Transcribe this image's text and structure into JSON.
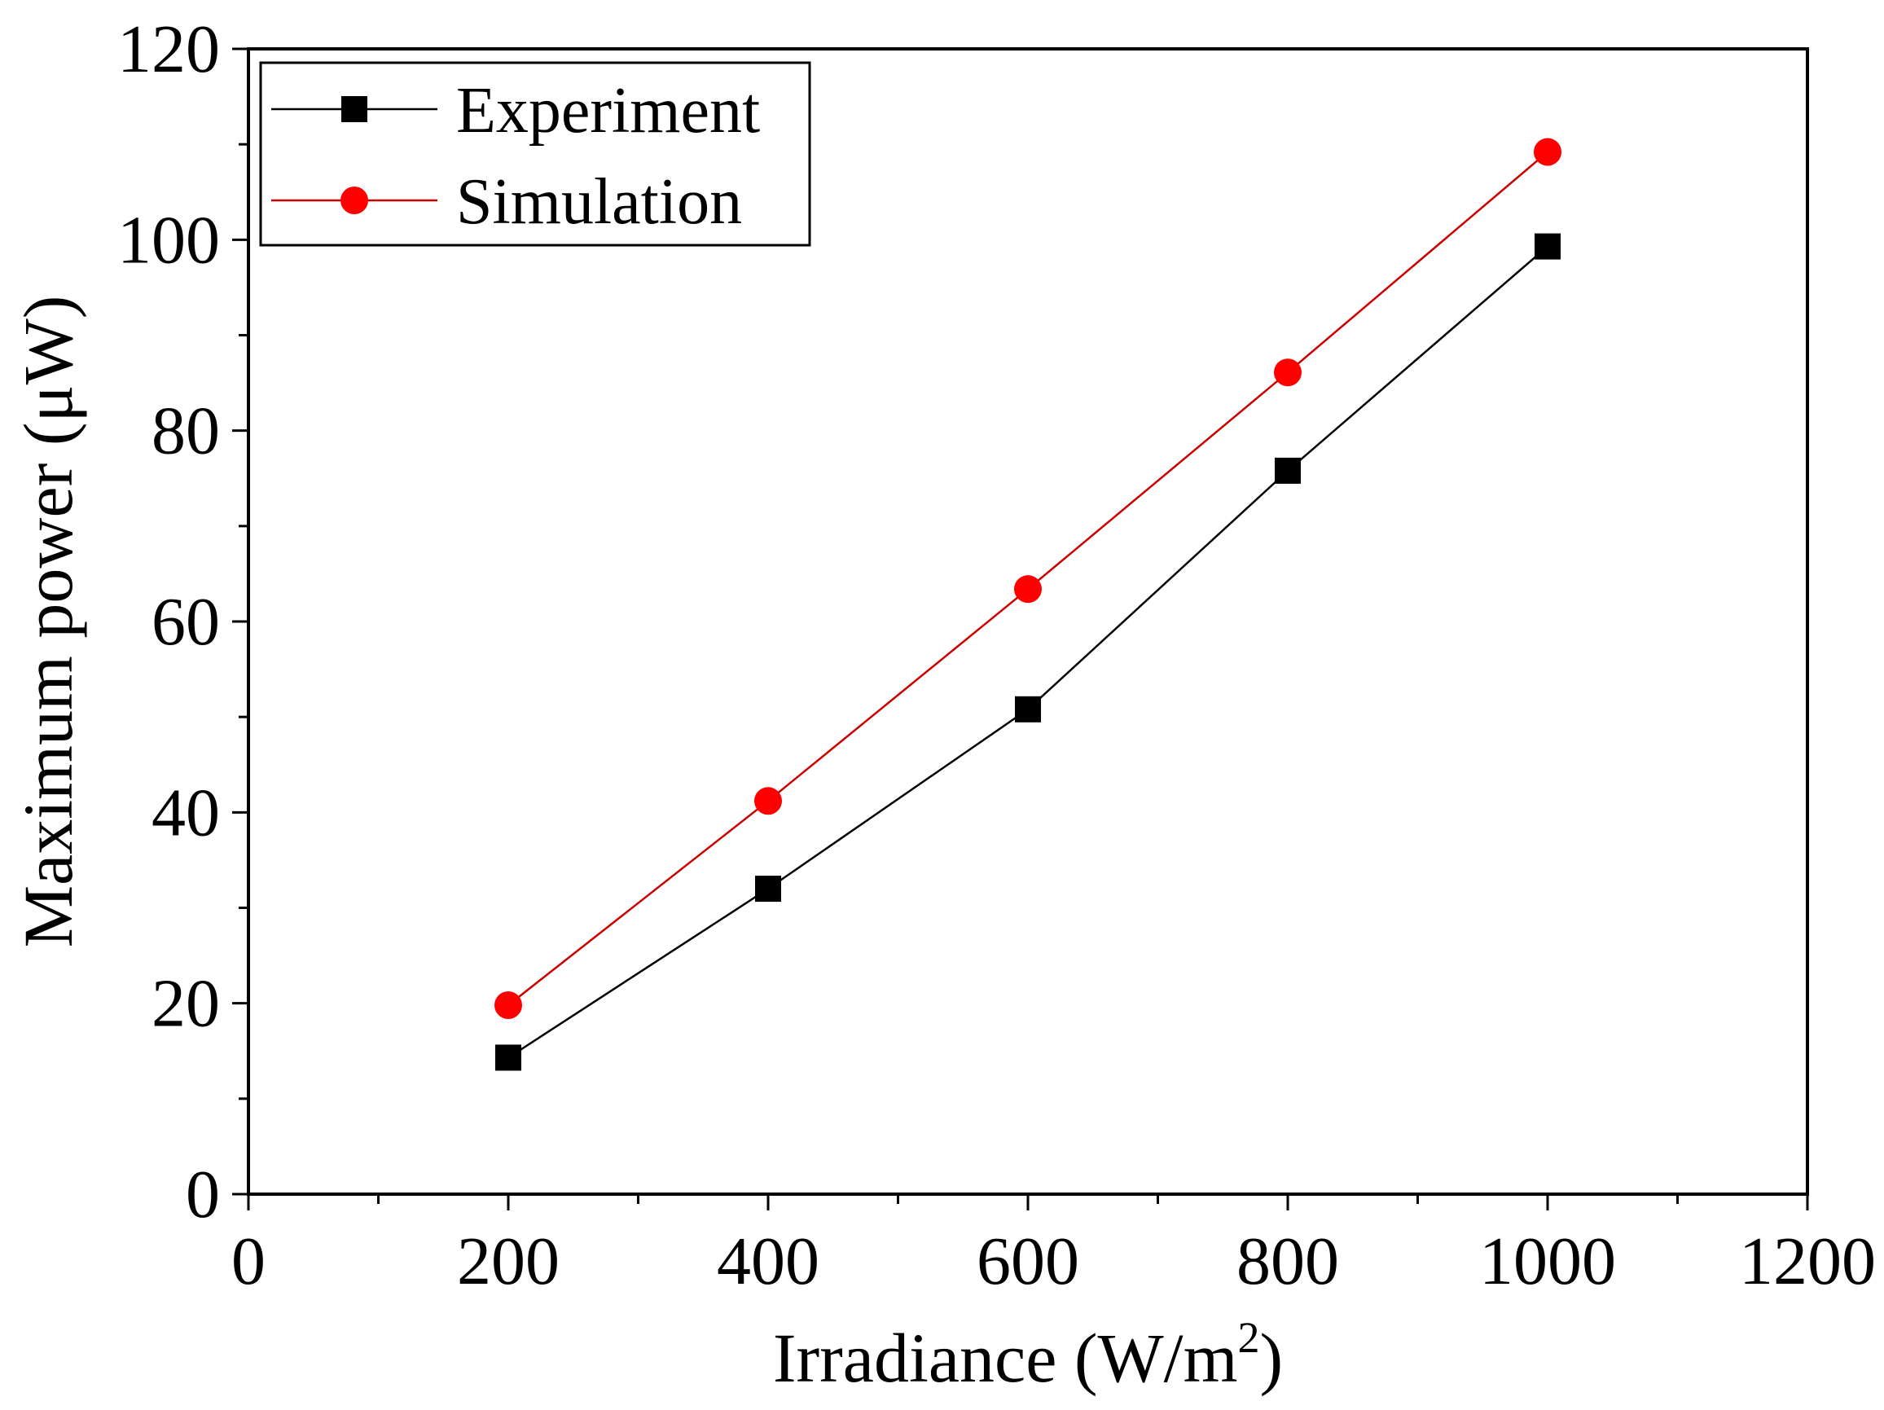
{
  "chart_data": {
    "type": "line",
    "xlabel": "Irradiance (W/m",
    "xlabel_sup": "2",
    "xlabel_close": ")",
    "ylabel": "Maximum power (μW)",
    "xlim": [
      0,
      1200
    ],
    "ylim": [
      0,
      120
    ],
    "x_ticks": [
      0,
      200,
      400,
      600,
      800,
      1000,
      1200
    ],
    "x_tick_labels": [
      "0",
      "200",
      "400",
      "600",
      "800",
      "1000",
      "1200"
    ],
    "y_ticks": [
      0,
      20,
      40,
      60,
      80,
      100,
      120
    ],
    "y_tick_labels": [
      "0",
      "20",
      "40",
      "60",
      "80",
      "100",
      "120"
    ],
    "x_minor_step": 100,
    "y_minor_step": 10,
    "grid": false,
    "legend_position": "top-left",
    "x": [
      200,
      400,
      600,
      800,
      1000
    ],
    "series": [
      {
        "name": "Experiment",
        "values": [
          14.3,
          32.0,
          50.8,
          75.8,
          99.3
        ],
        "color": "#000000",
        "marker": "square"
      },
      {
        "name": "Simulation",
        "values": [
          19.8,
          41.2,
          63.4,
          86.1,
          109.2
        ],
        "color": "#ff0000",
        "line_color": "#cc0000",
        "marker": "circle"
      }
    ]
  }
}
